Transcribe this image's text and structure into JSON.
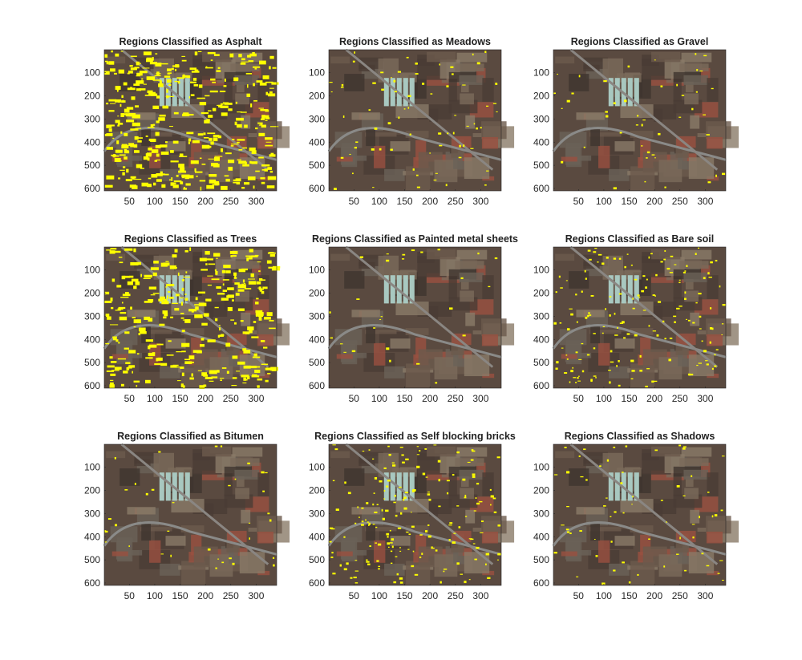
{
  "chart_data": {
    "type": "heatmap",
    "image_extent": {
      "x": [
        1,
        340
      ],
      "y": [
        1,
        610
      ]
    },
    "x_ticks": [
      50,
      100,
      150,
      200,
      250,
      300
    ],
    "y_ticks": [
      100,
      200,
      300,
      400,
      500,
      600
    ],
    "highlight_color": "#ffff00",
    "grid": false,
    "subplots": [
      {
        "title": "Regions Classified as Asphalt"
      },
      {
        "title": "Regions Classified as Meadows"
      },
      {
        "title": "Regions Classified as Gravel"
      },
      {
        "title": "Regions Classified as Trees"
      },
      {
        "title": "Regions Classified as Painted metal sheets"
      },
      {
        "title": "Regions Classified as Bare soil"
      },
      {
        "title": "Regions Classified as Bitumen"
      },
      {
        "title": "Regions Classified as Self blocking bricks"
      },
      {
        "title": "Regions Classified as Shadows"
      }
    ]
  }
}
